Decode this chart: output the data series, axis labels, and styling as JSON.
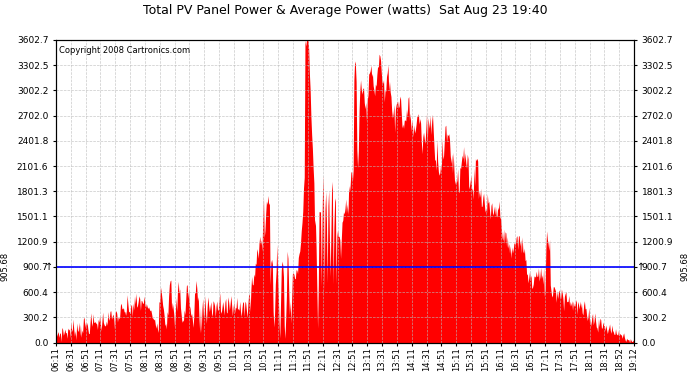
{
  "title": "Total PV Panel Power & Average Power (watts)  Sat Aug 23 19:40",
  "copyright": "Copyright 2008 Cartronics.com",
  "avg_power": 905.68,
  "y_max": 3602.7,
  "y_ticks": [
    0.0,
    300.2,
    600.4,
    900.7,
    1200.9,
    1501.1,
    1801.3,
    2101.6,
    2401.8,
    2702.0,
    3002.2,
    3302.5,
    3602.7
  ],
  "fill_color": "#FF0000",
  "avg_line_color": "#0000FF",
  "background_color": "#FFFFFF",
  "grid_color": "#BBBBBB",
  "x_labels": [
    "06:11",
    "06:31",
    "06:51",
    "07:11",
    "07:31",
    "07:51",
    "08:11",
    "08:31",
    "08:51",
    "09:11",
    "09:31",
    "09:51",
    "10:11",
    "10:31",
    "10:51",
    "11:11",
    "11:31",
    "11:51",
    "12:11",
    "12:31",
    "12:51",
    "13:11",
    "13:31",
    "13:51",
    "14:11",
    "14:31",
    "14:51",
    "15:11",
    "15:31",
    "15:51",
    "16:11",
    "16:31",
    "16:51",
    "17:11",
    "17:31",
    "17:51",
    "18:11",
    "18:31",
    "18:52",
    "19:12"
  ]
}
